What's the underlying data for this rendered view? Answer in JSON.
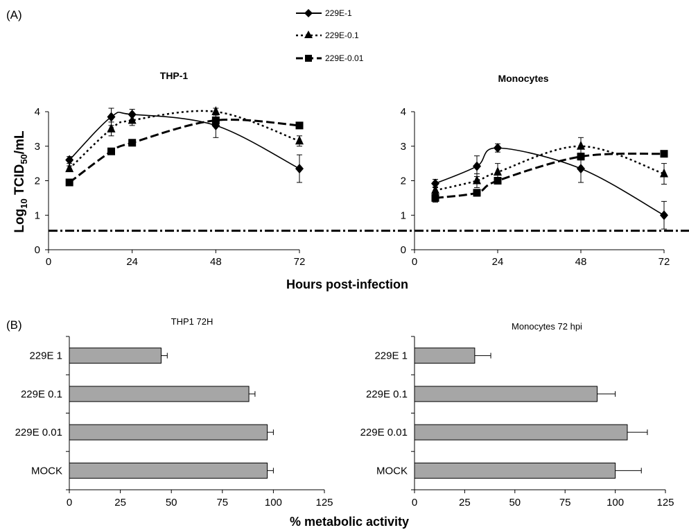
{
  "panels": {
    "a_label": "(A)",
    "b_label": "(B)"
  },
  "legend": [
    "229E-1",
    "229E-0.1",
    "229E-0.01"
  ],
  "shared_labels": {
    "line_ylabel_main": "Log",
    "line_ylabel_sub": "10",
    "line_ylabel_rest": " TCID",
    "line_ylabel_sub2": "50",
    "line_ylabel_end": "/mL",
    "line_xlabel": "Hours post-infection",
    "bar_xlabel": "% metabolic activity"
  },
  "chart_data": [
    {
      "type": "line",
      "title": "THP-1",
      "xlim": [
        0,
        72
      ],
      "ylim": [
        0,
        4
      ],
      "xticks": [
        0,
        24,
        48,
        72
      ],
      "yticks": [
        0,
        1,
        2,
        3,
        4
      ],
      "detection_limit": 0.55,
      "series": [
        {
          "name": "229E-1",
          "style": "solid",
          "marker": "diamond",
          "x": [
            6,
            18,
            24,
            48,
            72
          ],
          "y": [
            2.6,
            3.85,
            3.92,
            3.6,
            2.35
          ],
          "err": [
            0.1,
            0.25,
            0.15,
            0.35,
            0.4
          ]
        },
        {
          "name": "229E-0.1",
          "style": "dotted",
          "marker": "triangle",
          "x": [
            6,
            18,
            24,
            48,
            72
          ],
          "y": [
            2.35,
            3.5,
            3.75,
            4.0,
            3.15
          ],
          "err": [
            0.08,
            0.2,
            0.15,
            0.1,
            0.15
          ]
        },
        {
          "name": "229E-0.01",
          "style": "dashed",
          "marker": "square",
          "x": [
            6,
            18,
            24,
            48,
            72
          ],
          "y": [
            1.95,
            2.85,
            3.1,
            3.75,
            3.6
          ],
          "err": [
            0.08,
            0.08,
            0.08,
            0.1,
            0.08
          ]
        }
      ]
    },
    {
      "type": "line",
      "title": "Monocytes",
      "xlim": [
        0,
        72
      ],
      "ylim": [
        0,
        4
      ],
      "xticks": [
        0,
        24,
        48,
        72
      ],
      "yticks": [
        0,
        1,
        2,
        3,
        4
      ],
      "detection_limit": 0.55,
      "series": [
        {
          "name": "229E-1",
          "style": "solid",
          "marker": "diamond",
          "x": [
            6,
            18,
            24,
            48,
            72
          ],
          "y": [
            1.92,
            2.42,
            2.95,
            2.35,
            1.0
          ],
          "err": [
            0.12,
            0.3,
            0.12,
            0.4,
            0.4
          ]
        },
        {
          "name": "229E-0.1",
          "style": "dotted",
          "marker": "triangle",
          "x": [
            6,
            18,
            24,
            48,
            72
          ],
          "y": [
            1.72,
            2.0,
            2.25,
            3.0,
            2.2
          ],
          "err": [
            0.1,
            0.2,
            0.25,
            0.25,
            0.3
          ]
        },
        {
          "name": "229E-0.01",
          "style": "dashed",
          "marker": "square",
          "x": [
            6,
            18,
            24,
            48,
            72
          ],
          "y": [
            1.5,
            1.65,
            2.0,
            2.7,
            2.78
          ],
          "err": [
            0.12,
            0.1,
            0.1,
            0.1,
            0.08
          ]
        }
      ]
    },
    {
      "type": "bar",
      "orientation": "horizontal",
      "title": "THP1 72H",
      "categories": [
        "229E 1",
        "229E 0.1",
        "229E 0.01",
        "MOCK"
      ],
      "values": [
        45,
        88,
        97,
        97
      ],
      "err": [
        3,
        3,
        3,
        3
      ],
      "xlim": [
        0,
        125
      ],
      "xticks": [
        0,
        25,
        50,
        75,
        100,
        125
      ]
    },
    {
      "type": "bar",
      "orientation": "horizontal",
      "title": "Monocytes 72 hpi",
      "categories": [
        "229E 1",
        "229E 0.1",
        "229E 0.01",
        "MOCK"
      ],
      "values": [
        30,
        91,
        106,
        100
      ],
      "err": [
        8,
        9,
        10,
        13
      ],
      "xlim": [
        0,
        125
      ],
      "xticks": [
        0,
        25,
        50,
        75,
        100,
        125
      ]
    }
  ]
}
